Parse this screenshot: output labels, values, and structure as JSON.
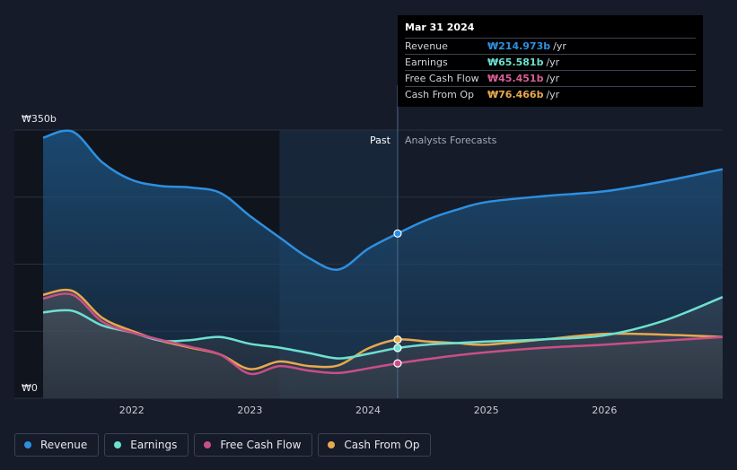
{
  "chart_data": {
    "type": "area",
    "title": "",
    "currency_symbol": "₩",
    "y_unit": "b",
    "ylim": [
      0,
      350
    ],
    "x_range": [
      2021.25,
      2027.0
    ],
    "y_tick_labels": [
      {
        "label": "₩350b",
        "value": 350
      },
      {
        "label": "₩0",
        "value": 0
      }
    ],
    "x_tick_labels": [
      {
        "label": "2022",
        "value": 2022
      },
      {
        "label": "2023",
        "value": 2023
      },
      {
        "label": "2024",
        "value": 2024
      },
      {
        "label": "2025",
        "value": 2025
      },
      {
        "label": "2026",
        "value": 2026
      }
    ],
    "divider_x": 2024.25,
    "highlight_range": [
      2023.25,
      2024.25
    ],
    "past_label": "Past",
    "forecast_label": "Analysts Forecasts",
    "series": [
      {
        "name": "Revenue",
        "color": "#2e8fe0",
        "fill": true,
        "points": [
          [
            2021.25,
            340
          ],
          [
            2021.5,
            348
          ],
          [
            2021.75,
            308
          ],
          [
            2022.0,
            285
          ],
          [
            2022.25,
            277
          ],
          [
            2022.5,
            275
          ],
          [
            2022.75,
            268
          ],
          [
            2023.0,
            238
          ],
          [
            2023.25,
            210
          ],
          [
            2023.5,
            183
          ],
          [
            2023.75,
            168
          ],
          [
            2024.0,
            195
          ],
          [
            2024.25,
            215
          ],
          [
            2024.5,
            233
          ],
          [
            2024.75,
            246
          ],
          [
            2025.0,
            256
          ],
          [
            2025.5,
            264
          ],
          [
            2026.0,
            270
          ],
          [
            2026.5,
            283
          ],
          [
            2027.0,
            299
          ]
        ]
      },
      {
        "name": "Cash From Op",
        "color": "#e8a94e",
        "fill": true,
        "points": [
          [
            2021.25,
            135
          ],
          [
            2021.5,
            140
          ],
          [
            2021.75,
            105
          ],
          [
            2022.0,
            88
          ],
          [
            2022.25,
            75
          ],
          [
            2022.5,
            66
          ],
          [
            2022.75,
            57
          ],
          [
            2023.0,
            38
          ],
          [
            2023.25,
            48
          ],
          [
            2023.5,
            42
          ],
          [
            2023.75,
            43
          ],
          [
            2024.0,
            65
          ],
          [
            2024.25,
            76.5
          ],
          [
            2024.5,
            74
          ],
          [
            2024.75,
            72
          ],
          [
            2025.0,
            70
          ],
          [
            2025.5,
            77
          ],
          [
            2026.0,
            84
          ],
          [
            2026.5,
            83
          ],
          [
            2027.0,
            80
          ]
        ]
      },
      {
        "name": "Earnings",
        "color": "#6de0d0",
        "fill": true,
        "points": [
          [
            2021.25,
            112
          ],
          [
            2021.5,
            114
          ],
          [
            2021.75,
            95
          ],
          [
            2022.0,
            86
          ],
          [
            2022.25,
            75
          ],
          [
            2022.5,
            76
          ],
          [
            2022.75,
            80
          ],
          [
            2023.0,
            71
          ],
          [
            2023.25,
            66
          ],
          [
            2023.5,
            59
          ],
          [
            2023.75,
            52
          ],
          [
            2024.0,
            58
          ],
          [
            2024.25,
            65.6
          ],
          [
            2024.5,
            70
          ],
          [
            2024.75,
            72
          ],
          [
            2025.0,
            74
          ],
          [
            2025.5,
            77
          ],
          [
            2026.0,
            82
          ],
          [
            2026.5,
            101
          ],
          [
            2027.0,
            132
          ]
        ]
      },
      {
        "name": "Free Cash Flow",
        "color": "#c94f86",
        "fill": true,
        "points": [
          [
            2021.25,
            130
          ],
          [
            2021.5,
            135
          ],
          [
            2021.75,
            100
          ],
          [
            2022.0,
            86
          ],
          [
            2022.25,
            76
          ],
          [
            2022.5,
            67
          ],
          [
            2022.75,
            57
          ],
          [
            2023.0,
            32
          ],
          [
            2023.25,
            42
          ],
          [
            2023.5,
            36
          ],
          [
            2023.75,
            33
          ],
          [
            2024.0,
            39
          ],
          [
            2024.25,
            45.5
          ],
          [
            2024.5,
            51
          ],
          [
            2024.75,
            56
          ],
          [
            2025.0,
            60
          ],
          [
            2025.5,
            66
          ],
          [
            2026.0,
            70
          ],
          [
            2026.5,
            75
          ],
          [
            2027.0,
            80
          ]
        ]
      }
    ],
    "markers": [
      {
        "series": "Revenue",
        "x": 2024.25,
        "y": 215
      },
      {
        "series": "Cash From Op",
        "x": 2024.25,
        "y": 76.5
      },
      {
        "series": "Earnings",
        "x": 2024.25,
        "y": 65.6
      },
      {
        "series": "Free Cash Flow",
        "x": 2024.25,
        "y": 45.5
      }
    ]
  },
  "tooltip": {
    "date": "Mar 31 2024",
    "rows": [
      {
        "label": "Revenue",
        "value": "₩214.973b",
        "unit": "/yr",
        "color": "#2e8fe0"
      },
      {
        "label": "Earnings",
        "value": "₩65.581b",
        "unit": "/yr",
        "color": "#6de0d0"
      },
      {
        "label": "Free Cash Flow",
        "value": "₩45.451b",
        "unit": "/yr",
        "color": "#d85e95"
      },
      {
        "label": "Cash From Op",
        "value": "₩76.466b",
        "unit": "/yr",
        "color": "#e8a94e"
      }
    ]
  },
  "legend": [
    {
      "label": "Revenue",
      "color": "#2e8fe0"
    },
    {
      "label": "Earnings",
      "color": "#6de0d0"
    },
    {
      "label": "Free Cash Flow",
      "color": "#c94f86"
    },
    {
      "label": "Cash From Op",
      "color": "#e8a94e"
    }
  ]
}
